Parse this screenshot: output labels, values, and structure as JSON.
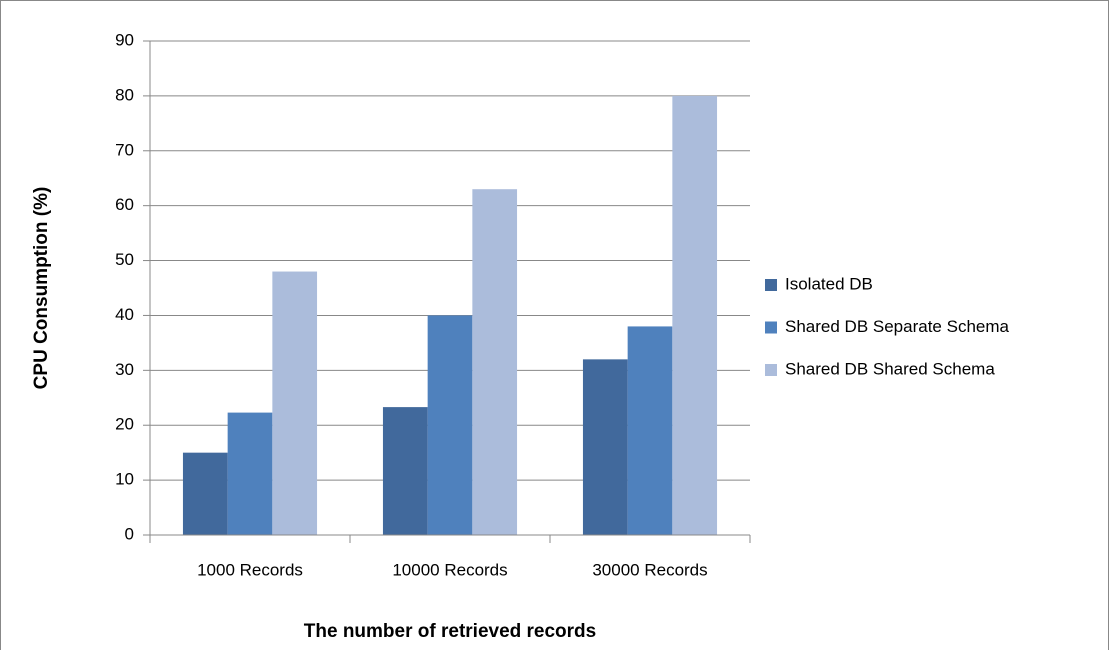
{
  "chart_data": {
    "type": "bar",
    "categories": [
      "1000 Records",
      "10000 Records",
      "30000 Records"
    ],
    "series": [
      {
        "name": "Isolated DB",
        "color": "#41699c",
        "values": [
          15,
          23.3,
          32
        ]
      },
      {
        "name": "Shared DB Separate Schema",
        "color": "#4f81bd",
        "values": [
          22.3,
          40,
          38
        ]
      },
      {
        "name": "Shared DB Shared Schema",
        "color": "#abbcdb",
        "values": [
          48,
          63,
          80
        ]
      }
    ],
    "x_label": "The number of retrieved records",
    "y_label": "CPU Consumption (%)",
    "ylim": [
      0,
      90
    ],
    "yticks": [
      0,
      10,
      20,
      30,
      40,
      50,
      60,
      70,
      80,
      90
    ],
    "grid": true,
    "legend": "right"
  }
}
